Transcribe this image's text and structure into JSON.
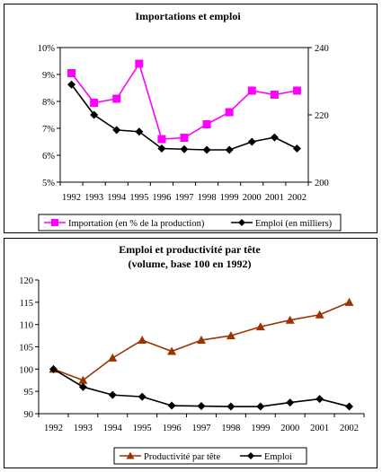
{
  "chart_data": [
    {
      "type": "line",
      "title": "Importations et emploi",
      "categories": [
        "1992",
        "1993",
        "1994",
        "1995",
        "1996",
        "1997",
        "1998",
        "1999",
        "2000",
        "2001",
        "2002"
      ],
      "y_left": {
        "range": [
          5,
          10
        ],
        "ticks": [
          "5%",
          "6%",
          "7%",
          "8%",
          "9%",
          "10%"
        ]
      },
      "y_right": {
        "range": [
          200,
          240
        ],
        "ticks": [
          "200",
          "220",
          "240"
        ]
      },
      "grid": false,
      "legend_position": "bottom",
      "series": [
        {
          "name": "Importation (en % de la production)",
          "axis": "left",
          "marker": "square",
          "color": "#ff00ff",
          "values": [
            9.05,
            7.95,
            8.1,
            9.4,
            6.6,
            6.65,
            7.15,
            7.6,
            8.4,
            8.25,
            8.4
          ]
        },
        {
          "name": "Emploi (en milliers)",
          "axis": "right",
          "marker": "diamond",
          "color": "#000000",
          "values": [
            229,
            220,
            215.5,
            215,
            210,
            209.8,
            209.6,
            209.6,
            212,
            213.3,
            210
          ]
        }
      ]
    },
    {
      "type": "line",
      "title": "Emploi et productivité par tête",
      "subtitle": "(volume, base 100 en 1992)",
      "categories": [
        "1992",
        "1993",
        "1994",
        "1995",
        "1996",
        "1997",
        "1998",
        "1999",
        "2000",
        "2001",
        "2002"
      ],
      "y_left": {
        "range": [
          90,
          120
        ],
        "ticks": [
          "90",
          "95",
          "100",
          "105",
          "110",
          "115",
          "120"
        ]
      },
      "grid": false,
      "legend_position": "bottom",
      "series": [
        {
          "name": "Productivité par tête",
          "marker": "triangle",
          "color": "#993300",
          "values": [
            100,
            97.5,
            102.5,
            106.5,
            104,
            106.5,
            107.5,
            109.5,
            111,
            112.2,
            115
          ]
        },
        {
          "name": "Emploi",
          "marker": "diamond",
          "color": "#000000",
          "values": [
            100,
            96,
            94.2,
            93.8,
            91.8,
            91.7,
            91.6,
            91.6,
            92.5,
            93.3,
            91.6
          ]
        }
      ]
    }
  ]
}
